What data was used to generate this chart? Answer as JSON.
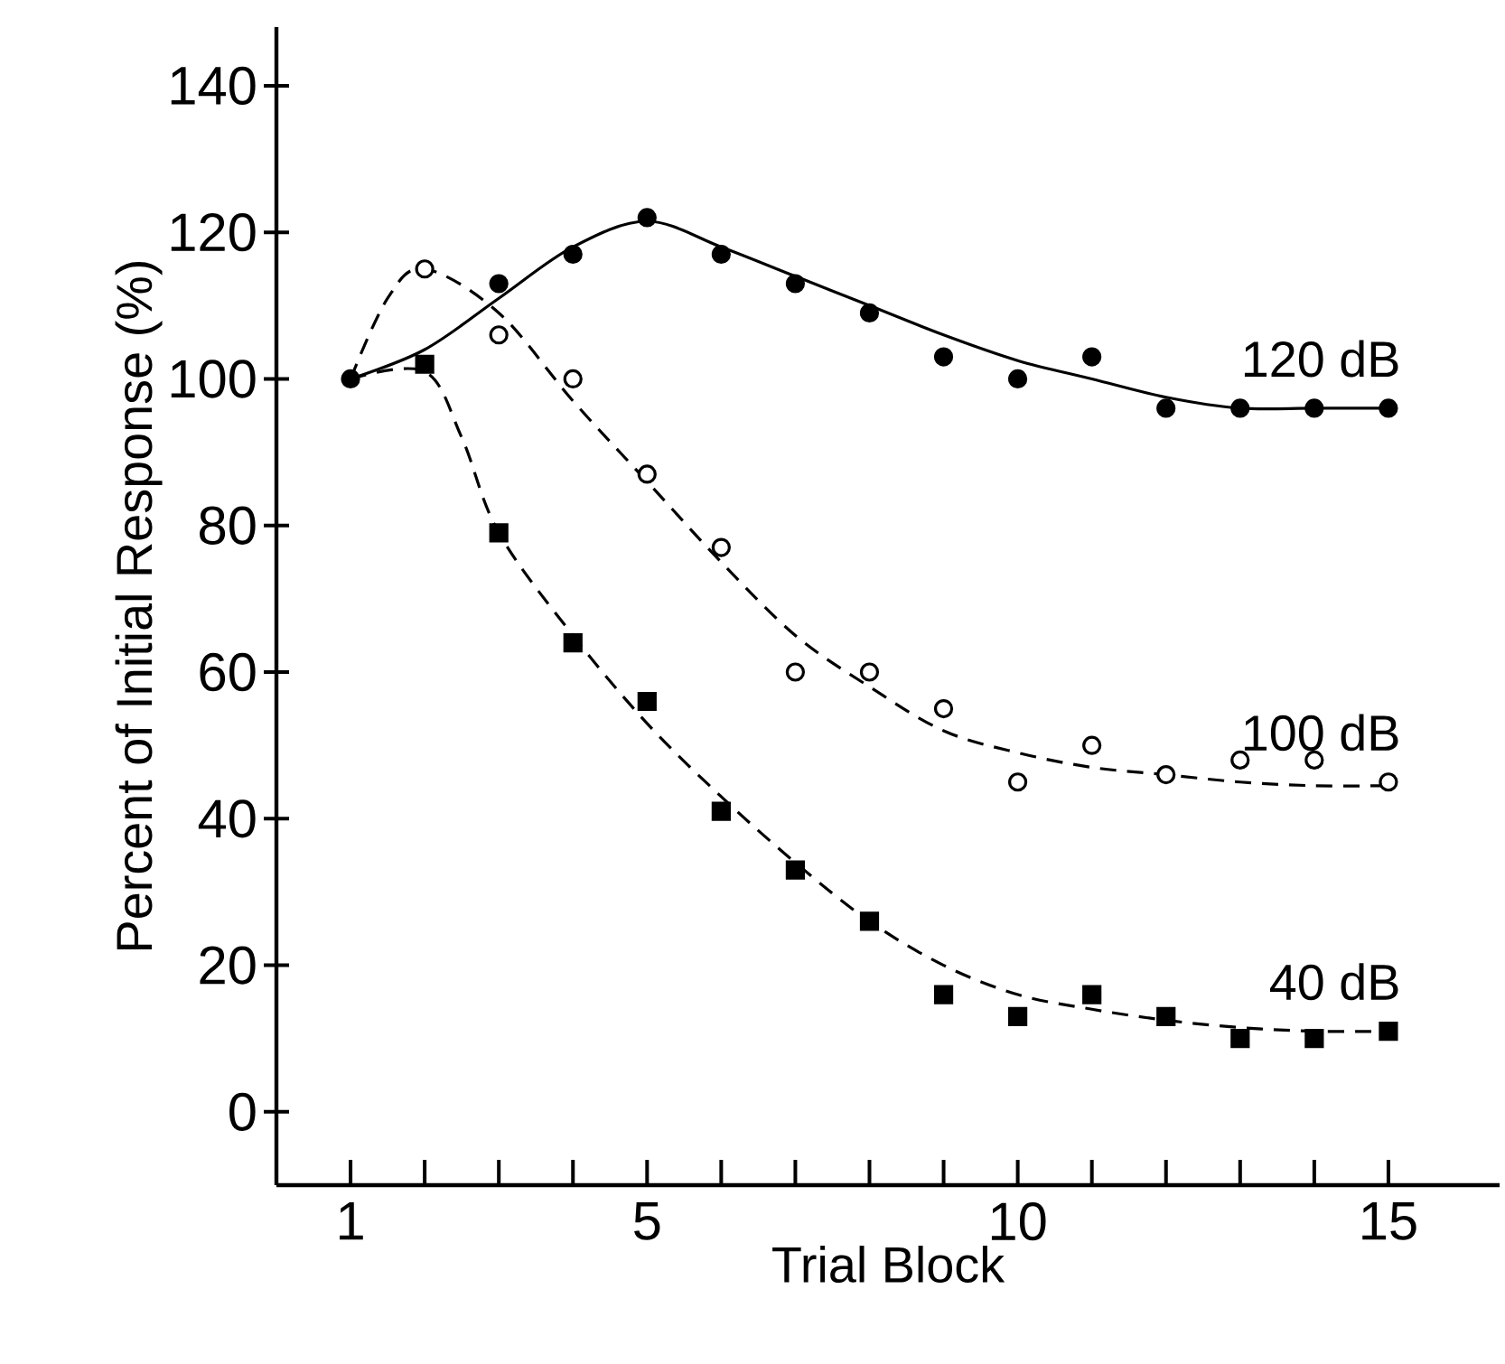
{
  "chart_data": {
    "type": "scatter",
    "xlabel": "Trial Block",
    "ylabel": "Percent of Initial Response (%)",
    "xlim": [
      0,
      16.5
    ],
    "ylim": [
      -10,
      148
    ],
    "xticks": [
      1,
      {
        "value": 2,
        "label": null
      },
      {
        "value": 3,
        "label": null
      },
      {
        "value": 4,
        "label": null
      },
      5,
      {
        "value": 6,
        "label": null
      },
      {
        "value": 7,
        "label": null
      },
      {
        "value": 8,
        "label": null
      },
      {
        "value": 9,
        "label": null
      },
      10,
      {
        "value": 11,
        "label": null
      },
      {
        "value": 12,
        "label": null
      },
      {
        "value": 13,
        "label": null
      },
      {
        "value": 14,
        "label": null
      },
      15
    ],
    "yticks": [
      0,
      20,
      40,
      60,
      80,
      100,
      120,
      140
    ],
    "series": [
      {
        "name": "120 dB",
        "marker": "circle",
        "color": "#000000",
        "x": [
          1,
          3,
          4,
          5,
          6,
          7,
          8,
          9,
          10,
          11,
          12,
          13,
          14,
          15
        ],
        "values": [
          100,
          113,
          117,
          122,
          117,
          113,
          109,
          103,
          100,
          103,
          96,
          96,
          96,
          96
        ]
      },
      {
        "name": "100 dB",
        "marker": "circle",
        "color": "#ffffff",
        "x": [
          2,
          3,
          4,
          5,
          6,
          7,
          8,
          9,
          10,
          11,
          12,
          13,
          14,
          15
        ],
        "values": [
          115,
          106,
          100,
          87,
          77,
          60,
          60,
          55,
          45,
          50,
          46,
          48,
          48,
          45
        ]
      },
      {
        "name": "40 dB",
        "marker": "square",
        "color": "#000000",
        "x": [
          2,
          3,
          4,
          5,
          6,
          7,
          8,
          9,
          10,
          11,
          12,
          13,
          14,
          15
        ],
        "values": [
          102,
          79,
          64,
          56,
          41,
          33,
          26,
          16,
          13,
          16,
          13,
          10,
          10,
          11
        ]
      },
      {
        "type": "line",
        "line_style": "solid",
        "color": "#000000",
        "x": [
          1,
          2,
          3,
          4,
          5,
          6,
          7,
          8,
          9,
          10,
          11,
          12,
          13,
          14,
          15
        ],
        "values": [
          100,
          104,
          111,
          118,
          121.5,
          118,
          114,
          110,
          106,
          102.5,
          100,
          97.5,
          96,
          96,
          96
        ]
      },
      {
        "type": "line",
        "line_style": "dashed",
        "color": "#000000",
        "x": [
          1,
          1.5,
          2,
          3,
          4,
          5,
          6,
          7,
          8,
          9,
          10,
          11,
          12,
          13,
          14,
          15
        ],
        "values": [
          100,
          111,
          115,
          109,
          97,
          86,
          75,
          65,
          58,
          52,
          49,
          47,
          46,
          45,
          44.5,
          44.5
        ]
      },
      {
        "type": "line",
        "line_style": "dashed",
        "color": "#000000",
        "x": [
          1,
          2,
          2.5,
          3,
          4,
          5,
          6,
          7,
          8,
          9,
          10,
          11,
          12,
          13,
          14,
          15
        ],
        "values": [
          100,
          101,
          92,
          79,
          65,
          53,
          43,
          34,
          26,
          20,
          16,
          14,
          12.5,
          11.5,
          11,
          11
        ]
      }
    ]
  }
}
